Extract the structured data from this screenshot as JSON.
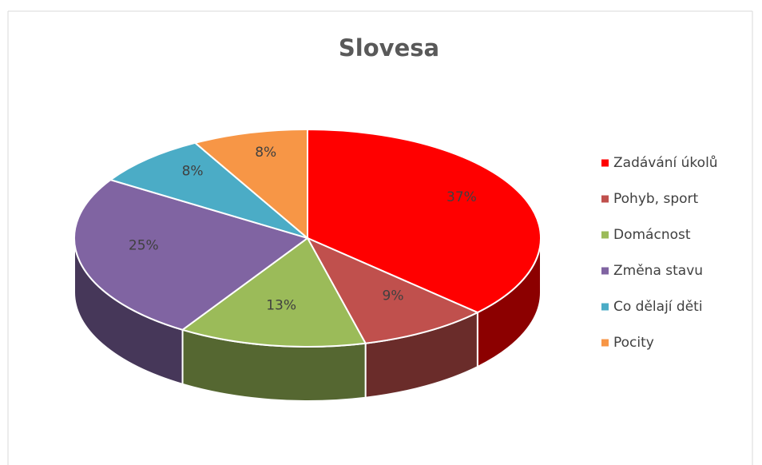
{
  "chart_data": {
    "type": "pie3d",
    "title": "Slovesa",
    "categories": [
      "Zadávání úkolů",
      "Pohyb, sport",
      "Domácnost",
      "Změna stavu",
      "Co dělají děti",
      "Pocity"
    ],
    "values": [
      37,
      9,
      13,
      25,
      8,
      8
    ],
    "value_labels": [
      "37%",
      "9%",
      "13%",
      "25%",
      "8%",
      "8%"
    ],
    "colors": [
      "#ff0000",
      "#c0504d",
      "#9bbb59",
      "#8064a2",
      "#4bacc6",
      "#f79646"
    ],
    "legend": "right"
  }
}
